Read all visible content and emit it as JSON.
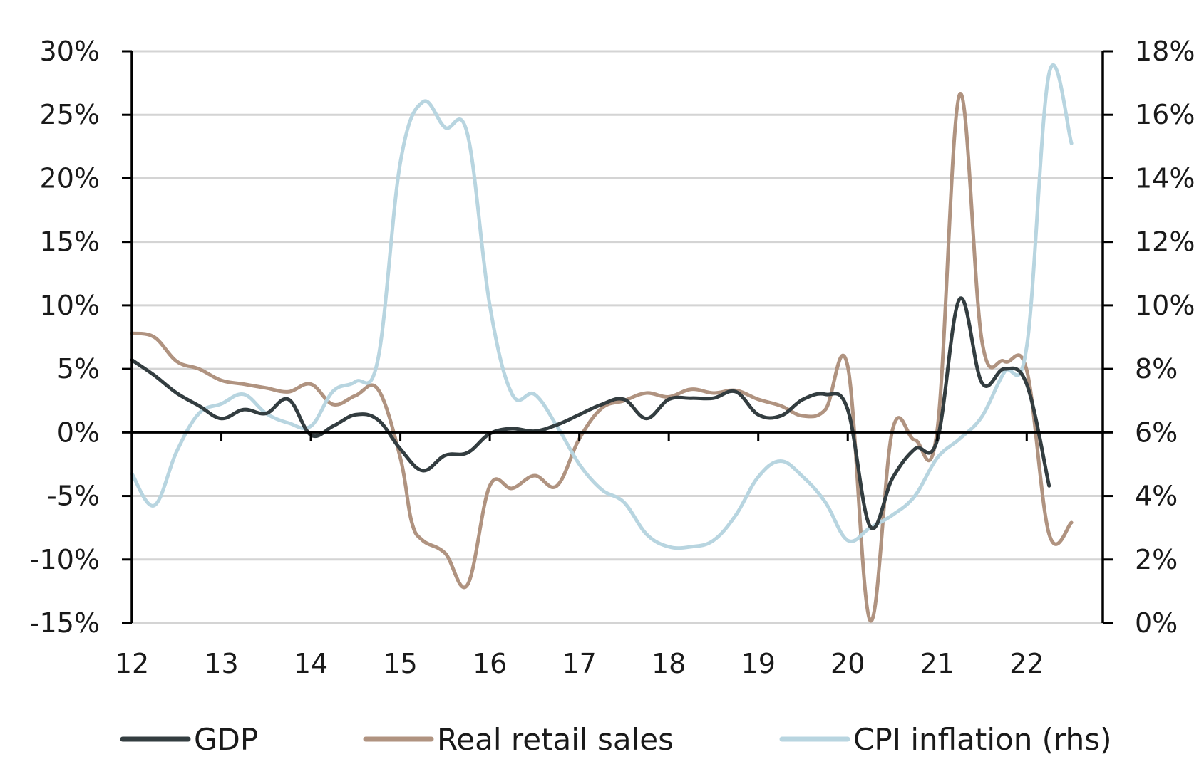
{
  "chart_data": {
    "type": "line",
    "title": "",
    "xlabel": "",
    "ylabel": "",
    "x_range": [
      2012,
      2022.85
    ],
    "x_ticks": [
      2012,
      2013,
      2014,
      2015,
      2016,
      2017,
      2018,
      2019,
      2020,
      2021,
      2022
    ],
    "x_tick_labels": [
      "12",
      "13",
      "14",
      "15",
      "16",
      "17",
      "18",
      "19",
      "20",
      "21",
      "22"
    ],
    "y_left": {
      "ylim": [
        -15,
        30
      ],
      "ticks": [
        30,
        25,
        20,
        15,
        10,
        5,
        0,
        -5,
        -10,
        -15
      ],
      "tick_labels": [
        "30%",
        "25%",
        "20%",
        "15%",
        "10%",
        "5%",
        "0%",
        "-5%",
        "-10%",
        "-15%"
      ]
    },
    "y_right": {
      "ylim": [
        0,
        18
      ],
      "ticks": [
        18,
        16,
        14,
        12,
        10,
        8,
        6,
        4,
        2,
        0
      ],
      "tick_labels": [
        "18%",
        "16%",
        "14%",
        "12%",
        "10%",
        "8%",
        "6%",
        "4%",
        "2%",
        "0%"
      ]
    },
    "grid": "horizontal",
    "legend_position": "bottom",
    "series": [
      {
        "name": "GDP",
        "axis": "left",
        "color": "#333d40",
        "points": [
          [
            2012.0,
            5.7
          ],
          [
            2012.25,
            4.5
          ],
          [
            2012.5,
            3.1
          ],
          [
            2012.75,
            2.1
          ],
          [
            2013.0,
            1.1
          ],
          [
            2013.25,
            1.8
          ],
          [
            2013.5,
            1.5
          ],
          [
            2013.75,
            2.6
          ],
          [
            2014.0,
            -0.2
          ],
          [
            2014.25,
            0.5
          ],
          [
            2014.5,
            1.4
          ],
          [
            2014.75,
            1.0
          ],
          [
            2015.0,
            -1.3
          ],
          [
            2015.25,
            -3.0
          ],
          [
            2015.5,
            -1.8
          ],
          [
            2015.75,
            -1.6
          ],
          [
            2016.0,
            -0.1
          ],
          [
            2016.25,
            0.3
          ],
          [
            2016.5,
            0.1
          ],
          [
            2016.75,
            0.6
          ],
          [
            2017.0,
            1.4
          ],
          [
            2017.25,
            2.2
          ],
          [
            2017.5,
            2.6
          ],
          [
            2017.75,
            1.1
          ],
          [
            2018.0,
            2.6
          ],
          [
            2018.25,
            2.7
          ],
          [
            2018.5,
            2.7
          ],
          [
            2018.75,
            3.2
          ],
          [
            2019.0,
            1.4
          ],
          [
            2019.25,
            1.3
          ],
          [
            2019.5,
            2.6
          ],
          [
            2019.75,
            3.0
          ],
          [
            2020.0,
            1.8
          ],
          [
            2020.25,
            -7.4
          ],
          [
            2020.5,
            -3.6
          ],
          [
            2020.75,
            -1.3
          ],
          [
            2021.0,
            -0.6
          ],
          [
            2021.25,
            10.5
          ],
          [
            2021.5,
            3.9
          ],
          [
            2021.75,
            5.0
          ],
          [
            2022.0,
            3.8
          ],
          [
            2022.25,
            -4.2
          ]
        ]
      },
      {
        "name": "Real retail sales",
        "axis": "left",
        "color": "#b09380",
        "points": [
          [
            2012.0,
            7.8
          ],
          [
            2012.25,
            7.5
          ],
          [
            2012.5,
            5.6
          ],
          [
            2012.75,
            5.0
          ],
          [
            2013.0,
            4.1
          ],
          [
            2013.25,
            3.8
          ],
          [
            2013.5,
            3.5
          ],
          [
            2013.75,
            3.2
          ],
          [
            2014.0,
            3.8
          ],
          [
            2014.25,
            2.2
          ],
          [
            2014.5,
            2.9
          ],
          [
            2014.75,
            3.4
          ],
          [
            2015.0,
            -2.0
          ],
          [
            2015.125,
            -7.0
          ],
          [
            2015.25,
            -8.5
          ],
          [
            2015.5,
            -9.5
          ],
          [
            2015.75,
            -12.0
          ],
          [
            2016.0,
            -4.2
          ],
          [
            2016.25,
            -4.4
          ],
          [
            2016.5,
            -3.4
          ],
          [
            2016.75,
            -4.2
          ],
          [
            2017.0,
            -0.5
          ],
          [
            2017.25,
            1.9
          ],
          [
            2017.5,
            2.5
          ],
          [
            2017.75,
            3.1
          ],
          [
            2018.0,
            2.8
          ],
          [
            2018.25,
            3.4
          ],
          [
            2018.5,
            3.1
          ],
          [
            2018.75,
            3.3
          ],
          [
            2019.0,
            2.6
          ],
          [
            2019.25,
            2.1
          ],
          [
            2019.5,
            1.3
          ],
          [
            2019.75,
            1.8
          ],
          [
            2020.0,
            5.2
          ],
          [
            2020.25,
            -14.8
          ],
          [
            2020.5,
            0.2
          ],
          [
            2020.75,
            -0.6
          ],
          [
            2021.0,
            0.2
          ],
          [
            2021.25,
            26.6
          ],
          [
            2021.5,
            7.2
          ],
          [
            2021.75,
            5.6
          ],
          [
            2022.0,
            4.9
          ],
          [
            2022.25,
            -8.0
          ],
          [
            2022.5,
            -7.1
          ]
        ]
      },
      {
        "name": "CPI inflation (rhs)",
        "axis": "right",
        "color": "#b8d5e0",
        "points": [
          [
            2012.0,
            4.7
          ],
          [
            2012.25,
            3.7
          ],
          [
            2012.5,
            5.4
          ],
          [
            2012.75,
            6.6
          ],
          [
            2013.0,
            6.9
          ],
          [
            2013.25,
            7.2
          ],
          [
            2013.5,
            6.6
          ],
          [
            2013.75,
            6.3
          ],
          [
            2014.0,
            6.2
          ],
          [
            2014.25,
            7.3
          ],
          [
            2014.5,
            7.6
          ],
          [
            2014.75,
            8.3
          ],
          [
            2015.0,
            14.5
          ],
          [
            2015.25,
            16.4
          ],
          [
            2015.5,
            15.6
          ],
          [
            2015.75,
            15.4
          ],
          [
            2016.0,
            10.0
          ],
          [
            2016.25,
            7.2
          ],
          [
            2016.5,
            7.2
          ],
          [
            2016.75,
            6.2
          ],
          [
            2017.0,
            5.0
          ],
          [
            2017.25,
            4.2
          ],
          [
            2017.5,
            3.8
          ],
          [
            2017.75,
            2.8
          ],
          [
            2018.0,
            2.4
          ],
          [
            2018.25,
            2.4
          ],
          [
            2018.5,
            2.6
          ],
          [
            2018.75,
            3.4
          ],
          [
            2019.0,
            4.6
          ],
          [
            2019.25,
            5.1
          ],
          [
            2019.5,
            4.6
          ],
          [
            2019.75,
            3.8
          ],
          [
            2020.0,
            2.6
          ],
          [
            2020.25,
            3.0
          ],
          [
            2020.5,
            3.4
          ],
          [
            2020.75,
            4.0
          ],
          [
            2021.0,
            5.2
          ],
          [
            2021.25,
            5.8
          ],
          [
            2021.5,
            6.5
          ],
          [
            2021.75,
            7.9
          ],
          [
            2022.0,
            8.7
          ],
          [
            2022.25,
            17.3
          ],
          [
            2022.5,
            15.1
          ]
        ]
      }
    ]
  }
}
